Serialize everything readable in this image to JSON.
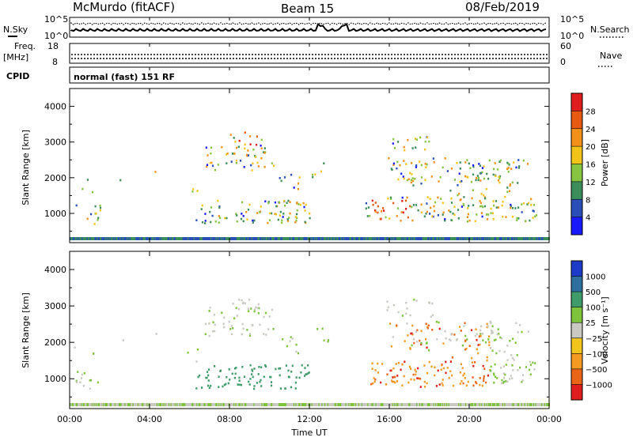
{
  "header": {
    "station": "McMurdo (fitACF)",
    "beam": "Beam 15",
    "date": "08/Feb/2019"
  },
  "noise_panel": {
    "left_label": "N.Sky",
    "right_label": "N.Search",
    "left_ticks": [
      "10^5",
      "10^0"
    ],
    "right_ticks": [
      "10^5",
      "10^0"
    ]
  },
  "freq_panel": {
    "left_label_1": "Freq.",
    "left_label_2": "[MHz]",
    "left_ticks": [
      "18",
      "8"
    ],
    "right_label": "Nave",
    "right_ticks": [
      "60",
      "0"
    ]
  },
  "cpid_panel": {
    "label": "CPID",
    "value": "normal (fast) 151 RF"
  },
  "chart_data": [
    {
      "type": "heatmap",
      "name": "power",
      "ylabel": "Slant Range [km]",
      "ylim": [
        180,
        4500
      ],
      "yticks": [
        "1000",
        "2000",
        "3000",
        "4000"
      ],
      "colorbar_label": "Power [dB]",
      "colorbar_ticks": [
        "4",
        "8",
        "12",
        "16",
        "20",
        "24",
        "28"
      ],
      "colorbar_colors": [
        "#1a1aff",
        "#2a4fb8",
        "#3b8e5a",
        "#86c441",
        "#f2c419",
        "#f39019",
        "#e85a12",
        "#e01e1e"
      ]
    },
    {
      "type": "heatmap",
      "name": "velocity",
      "ylabel": "Slant Range [km]",
      "ylim": [
        180,
        4500
      ],
      "yticks": [
        "1000",
        "2000",
        "3000",
        "4000"
      ],
      "colorbar_label": "Velocity [m s⁻¹]",
      "colorbar_ticks": [
        "1000",
        "500",
        "100",
        "25",
        "−25",
        "−100",
        "−500",
        "−1000"
      ],
      "colorbar_colors": [
        "#1c3cc8",
        "#2e6fa0",
        "#3f9b6a",
        "#7dc43c",
        "#c9c9c2",
        "#f1c51d",
        "#f29a22",
        "#ea6418",
        "#e01e1e"
      ]
    }
  ],
  "x_axis": {
    "label": "Time UT",
    "ticks": [
      "00:00",
      "04:00",
      "08:00",
      "12:00",
      "16:00",
      "20:00",
      "00:00"
    ]
  }
}
